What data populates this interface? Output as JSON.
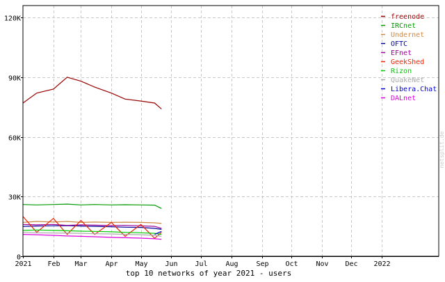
{
  "chart_data": {
    "type": "line",
    "title": "top 10 networks of year 2021 - users",
    "watermark": "netsplit.de",
    "ylim": [
      0,
      126000
    ],
    "y_ticks": [
      {
        "value": 0,
        "label": "0"
      },
      {
        "value": 30000,
        "label": "30K"
      },
      {
        "value": 60000,
        "label": "60K"
      },
      {
        "value": 90000,
        "label": "90K"
      },
      {
        "value": 120000,
        "label": "120K"
      }
    ],
    "x_range": [
      "2021-01-01",
      "2022-02-28"
    ],
    "x_ticks": [
      {
        "date": "2021-01-01",
        "label": "2021"
      },
      {
        "date": "2021-02-01",
        "label": "Feb"
      },
      {
        "date": "2021-03-01",
        "label": "Mar"
      },
      {
        "date": "2021-04-01",
        "label": "Apr"
      },
      {
        "date": "2021-05-01",
        "label": "May"
      },
      {
        "date": "2021-06-01",
        "label": "Jun"
      },
      {
        "date": "2021-07-01",
        "label": "Jul"
      },
      {
        "date": "2021-08-01",
        "label": "Aug"
      },
      {
        "date": "2021-09-01",
        "label": "Sep"
      },
      {
        "date": "2021-10-01",
        "label": "Oct"
      },
      {
        "date": "2021-11-01",
        "label": "Nov"
      },
      {
        "date": "2021-12-01",
        "label": "Dec"
      },
      {
        "date": "2022-01-01",
        "label": "2022"
      }
    ],
    "grid": true,
    "legend_position": "top-right",
    "x": [
      "2021-01-01",
      "2021-01-15",
      "2021-02-01",
      "2021-02-15",
      "2021-03-01",
      "2021-03-15",
      "2021-04-01",
      "2021-04-15",
      "2021-05-01",
      "2021-05-15",
      "2021-05-22"
    ],
    "series": [
      {
        "name": "freenode",
        "color": "#990000",
        "values": [
          77000,
          82000,
          84000,
          90000,
          88000,
          85000,
          82000,
          79000,
          78000,
          77000,
          74000
        ]
      },
      {
        "name": "IRCnet",
        "color": "#009900",
        "values": [
          26000,
          25800,
          26000,
          26200,
          25800,
          26000,
          25800,
          25900,
          25800,
          25700,
          24000
        ]
      },
      {
        "name": "Undernet",
        "color": "#cc8844",
        "values": [
          17000,
          17500,
          17200,
          17500,
          17000,
          17200,
          17000,
          17100,
          17000,
          16800,
          16500
        ]
      },
      {
        "name": "OFTC",
        "color": "#000099",
        "values": [
          15000,
          15200,
          15300,
          15400,
          15200,
          15000,
          14800,
          14600,
          14500,
          14000,
          13500
        ]
      },
      {
        "name": "EFnet",
        "color": "#990099",
        "values": [
          16000,
          15800,
          16000,
          15500,
          15800,
          15600,
          15400,
          15500,
          15300,
          15000,
          14000
        ]
      },
      {
        "name": "GeekShed",
        "color": "#ee2200",
        "values": [
          20000,
          12000,
          19000,
          11000,
          18000,
          11000,
          17000,
          10000,
          16000,
          9000,
          12000
        ]
      },
      {
        "name": "Rizon",
        "color": "#00cc00",
        "values": [
          13000,
          13200,
          13000,
          12800,
          12600,
          12500,
          12300,
          12000,
          11800,
          11500,
          11000
        ]
      },
      {
        "name": "QuakeNet",
        "color": "#aaaaaa",
        "values": [
          12000,
          11800,
          11700,
          11600,
          11500,
          11300,
          11200,
          11000,
          10800,
          10500,
          10000
        ]
      },
      {
        "name": "Libera.Chat",
        "color": "#0000cc",
        "values": [
          null,
          null,
          null,
          null,
          null,
          null,
          null,
          null,
          null,
          11000,
          12500
        ]
      },
      {
        "name": "DALnet",
        "color": "#dd00dd",
        "values": [
          11000,
          10800,
          10500,
          10200,
          10000,
          9800,
          9500,
          9300,
          9100,
          8800,
          8500
        ]
      }
    ]
  }
}
